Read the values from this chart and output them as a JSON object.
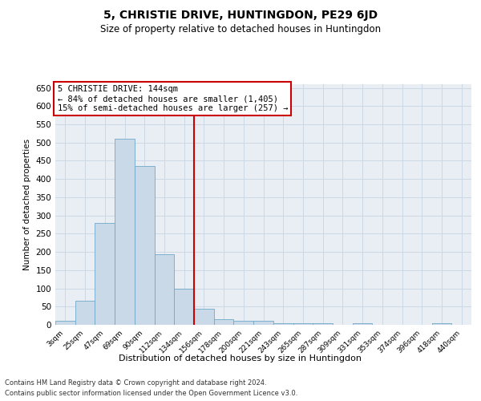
{
  "title": "5, CHRISTIE DRIVE, HUNTINGDON, PE29 6JD",
  "subtitle": "Size of property relative to detached houses in Huntingdon",
  "xlabel": "Distribution of detached houses by size in Huntingdon",
  "ylabel": "Number of detached properties",
  "footnote1": "Contains HM Land Registry data © Crown copyright and database right 2024.",
  "footnote2": "Contains public sector information licensed under the Open Government Licence v3.0.",
  "annotation_title": "5 CHRISTIE DRIVE: 144sqm",
  "annotation_line1": "← 84% of detached houses are smaller (1,405)",
  "annotation_line2": "15% of semi-detached houses are larger (257) →",
  "bar_categories": [
    "3sqm",
    "25sqm",
    "47sqm",
    "69sqm",
    "90sqm",
    "112sqm",
    "134sqm",
    "156sqm",
    "178sqm",
    "200sqm",
    "221sqm",
    "243sqm",
    "265sqm",
    "287sqm",
    "309sqm",
    "331sqm",
    "353sqm",
    "374sqm",
    "396sqm",
    "418sqm",
    "440sqm"
  ],
  "bar_values": [
    10,
    65,
    280,
    510,
    435,
    193,
    100,
    45,
    15,
    10,
    10,
    5,
    5,
    5,
    0,
    5,
    0,
    0,
    0,
    5,
    0
  ],
  "bar_color": "#c9d9e8",
  "bar_edge_color": "#6fa8c8",
  "vline_color": "#cc0000",
  "vline_x": 6.5,
  "ylim": [
    0,
    660
  ],
  "yticks": [
    0,
    50,
    100,
    150,
    200,
    250,
    300,
    350,
    400,
    450,
    500,
    550,
    600,
    650
  ],
  "grid_color": "#ccd8e4",
  "background_color": "#e8eef4",
  "title_fontsize": 10,
  "subtitle_fontsize": 8.5,
  "xlabel_fontsize": 8,
  "ylabel_fontsize": 7.5,
  "annotation_box_color": "#ffffff",
  "annotation_box_edge": "#cc0000",
  "annotation_fontsize": 7.5
}
